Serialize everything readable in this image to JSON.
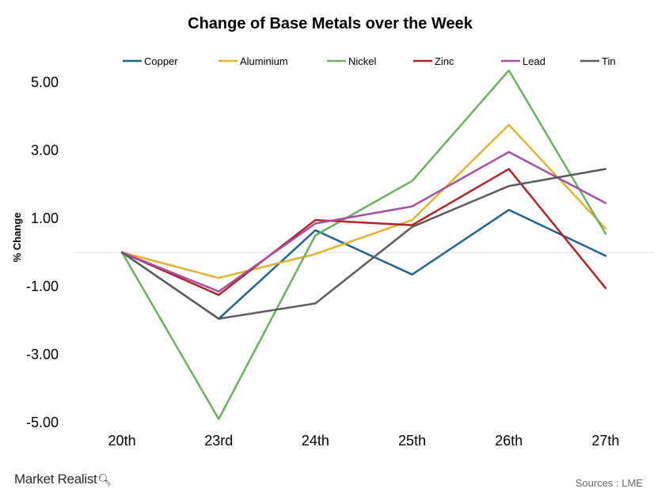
{
  "chart_data": {
    "type": "line",
    "title": "Change of Base Metals over the Week",
    "xlabel": "",
    "ylabel": "% Change",
    "categories": [
      "20th",
      "23rd",
      "24th",
      "25th",
      "26th",
      "27th"
    ],
    "y_ticks": [
      "5.00",
      "3.00",
      "1.00",
      "-1.00",
      "-3.00",
      "-5.00"
    ],
    "ylim": [
      -5,
      5
    ],
    "grid": false,
    "legend_position": "top",
    "series": [
      {
        "name": "Copper",
        "color": "#1f6391",
        "values": [
          0,
          -1.95,
          0.65,
          -0.65,
          1.25,
          -0.1
        ]
      },
      {
        "name": "Aluminium",
        "color": "#e5b02e",
        "values": [
          0,
          -0.75,
          -0.05,
          0.95,
          3.75,
          0.7
        ]
      },
      {
        "name": "Nickel",
        "color": "#6ab15c",
        "values": [
          0,
          -4.9,
          0.5,
          2.1,
          5.35,
          0.55
        ]
      },
      {
        "name": "Zinc",
        "color": "#b52126",
        "values": [
          0,
          -1.25,
          0.95,
          0.8,
          2.45,
          -1.05
        ]
      },
      {
        "name": "Lead",
        "color": "#a64ea6",
        "values": [
          0,
          -1.15,
          0.85,
          1.35,
          2.95,
          1.45
        ]
      },
      {
        "name": "Tin",
        "color": "#5b5b5b",
        "values": [
          0,
          -1.95,
          -1.5,
          0.75,
          1.95,
          2.45
        ]
      }
    ]
  },
  "footer": {
    "brand": "Market Realist",
    "brand_icon": "magnifier-icon",
    "source": "Sources : LME"
  }
}
